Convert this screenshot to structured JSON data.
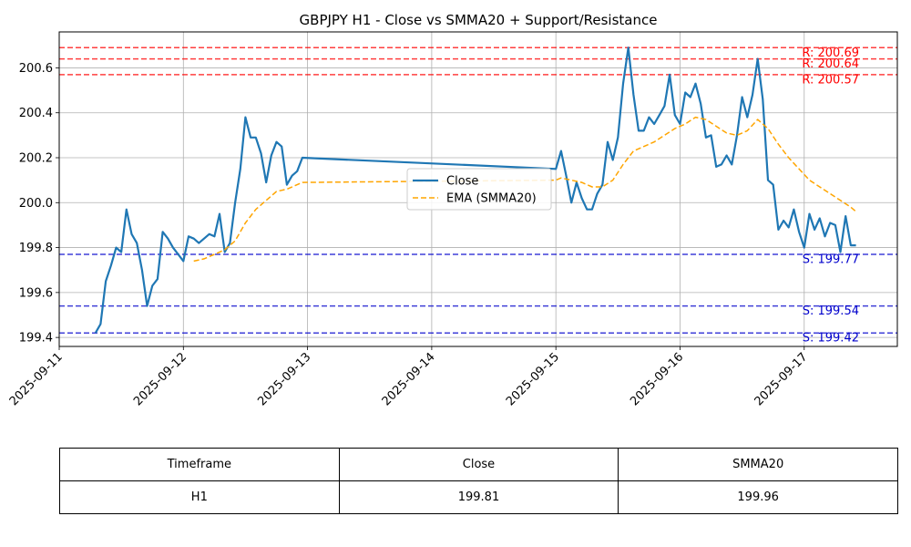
{
  "chart_data": {
    "type": "line",
    "title": "GBPJPY H1 - Close vs SMMA20 + Support/Resistance",
    "xlabel": "",
    "ylabel": "",
    "xlim": [
      "2025-09-11 00:00",
      "2025-09-17 18:00"
    ],
    "ylim": [
      199.36,
      200.76
    ],
    "x_ticks": [
      "2025-09-11",
      "2025-09-12",
      "2025-09-13",
      "2025-09-14",
      "2025-09-15",
      "2025-09-16",
      "2025-09-17"
    ],
    "y_ticks": [
      "199.4",
      "199.6",
      "199.8",
      "200.0",
      "200.2",
      "200.4",
      "200.6"
    ],
    "grid": true,
    "legend": {
      "position": "center",
      "entries": [
        "Close",
        "EMA (SMMA20)"
      ]
    },
    "series": [
      {
        "name": "Close",
        "color": "#1f77b4",
        "style": "solid",
        "points": [
          [
            "2025-09-11 07:00",
            199.42
          ],
          [
            "2025-09-11 08:00",
            199.46
          ],
          [
            "2025-09-11 09:00",
            199.65
          ],
          [
            "2025-09-11 10:00",
            199.72
          ],
          [
            "2025-09-11 11:00",
            199.8
          ],
          [
            "2025-09-11 12:00",
            199.78
          ],
          [
            "2025-09-11 13:00",
            199.97
          ],
          [
            "2025-09-11 14:00",
            199.86
          ],
          [
            "2025-09-11 15:00",
            199.82
          ],
          [
            "2025-09-11 16:00",
            199.7
          ],
          [
            "2025-09-11 17:00",
            199.54
          ],
          [
            "2025-09-11 18:00",
            199.63
          ],
          [
            "2025-09-11 19:00",
            199.66
          ],
          [
            "2025-09-11 20:00",
            199.87
          ],
          [
            "2025-09-11 21:00",
            199.84
          ],
          [
            "2025-09-11 22:00",
            199.8
          ],
          [
            "2025-09-11 23:00",
            199.77
          ],
          [
            "2025-09-12 00:00",
            199.74
          ],
          [
            "2025-09-12 01:00",
            199.85
          ],
          [
            "2025-09-12 02:00",
            199.84
          ],
          [
            "2025-09-12 03:00",
            199.82
          ],
          [
            "2025-09-12 04:00",
            199.84
          ],
          [
            "2025-09-12 05:00",
            199.86
          ],
          [
            "2025-09-12 06:00",
            199.85
          ],
          [
            "2025-09-12 07:00",
            199.95
          ],
          [
            "2025-09-12 08:00",
            199.78
          ],
          [
            "2025-09-12 09:00",
            199.82
          ],
          [
            "2025-09-12 10:00",
            200.0
          ],
          [
            "2025-09-12 11:00",
            200.15
          ],
          [
            "2025-09-12 12:00",
            200.38
          ],
          [
            "2025-09-12 13:00",
            200.29
          ],
          [
            "2025-09-12 14:00",
            200.29
          ],
          [
            "2025-09-12 15:00",
            200.22
          ],
          [
            "2025-09-12 16:00",
            200.09
          ],
          [
            "2025-09-12 17:00",
            200.21
          ],
          [
            "2025-09-12 18:00",
            200.27
          ],
          [
            "2025-09-12 19:00",
            200.25
          ],
          [
            "2025-09-12 20:00",
            200.08
          ],
          [
            "2025-09-12 21:00",
            200.12
          ],
          [
            "2025-09-12 22:00",
            200.14
          ],
          [
            "2025-09-12 23:00",
            200.2
          ],
          [
            "2025-09-15 00:00",
            200.15
          ],
          [
            "2025-09-15 01:00",
            200.23
          ],
          [
            "2025-09-15 02:00",
            200.12
          ],
          [
            "2025-09-15 03:00",
            200.0
          ],
          [
            "2025-09-15 04:00",
            200.09
          ],
          [
            "2025-09-15 05:00",
            200.02
          ],
          [
            "2025-09-15 06:00",
            199.97
          ],
          [
            "2025-09-15 07:00",
            199.97
          ],
          [
            "2025-09-15 08:00",
            200.04
          ],
          [
            "2025-09-15 09:00",
            200.08
          ],
          [
            "2025-09-15 10:00",
            200.27
          ],
          [
            "2025-09-15 11:00",
            200.19
          ],
          [
            "2025-09-15 12:00",
            200.29
          ],
          [
            "2025-09-15 13:00",
            200.53
          ],
          [
            "2025-09-15 14:00",
            200.69
          ],
          [
            "2025-09-15 15:00",
            200.48
          ],
          [
            "2025-09-15 16:00",
            200.32
          ],
          [
            "2025-09-15 17:00",
            200.32
          ],
          [
            "2025-09-15 18:00",
            200.38
          ],
          [
            "2025-09-15 19:00",
            200.35
          ],
          [
            "2025-09-15 20:00",
            200.39
          ],
          [
            "2025-09-15 21:00",
            200.43
          ],
          [
            "2025-09-15 22:00",
            200.57
          ],
          [
            "2025-09-15 23:00",
            200.39
          ],
          [
            "2025-09-16 00:00",
            200.35
          ],
          [
            "2025-09-16 01:00",
            200.49
          ],
          [
            "2025-09-16 02:00",
            200.47
          ],
          [
            "2025-09-16 03:00",
            200.53
          ],
          [
            "2025-09-16 04:00",
            200.44
          ],
          [
            "2025-09-16 05:00",
            200.29
          ],
          [
            "2025-09-16 06:00",
            200.3
          ],
          [
            "2025-09-16 07:00",
            200.16
          ],
          [
            "2025-09-16 08:00",
            200.17
          ],
          [
            "2025-09-16 09:00",
            200.21
          ],
          [
            "2025-09-16 10:00",
            200.17
          ],
          [
            "2025-09-16 11:00",
            200.3
          ],
          [
            "2025-09-16 12:00",
            200.47
          ],
          [
            "2025-09-16 13:00",
            200.38
          ],
          [
            "2025-09-16 14:00",
            200.48
          ],
          [
            "2025-09-16 15:00",
            200.64
          ],
          [
            "2025-09-16 16:00",
            200.46
          ],
          [
            "2025-09-16 17:00",
            200.1
          ],
          [
            "2025-09-16 18:00",
            200.08
          ],
          [
            "2025-09-16 19:00",
            199.88
          ],
          [
            "2025-09-16 20:00",
            199.92
          ],
          [
            "2025-09-16 21:00",
            199.89
          ],
          [
            "2025-09-16 22:00",
            199.97
          ],
          [
            "2025-09-16 23:00",
            199.87
          ],
          [
            "2025-09-17 00:00",
            199.8
          ],
          [
            "2025-09-17 01:00",
            199.95
          ],
          [
            "2025-09-17 02:00",
            199.88
          ],
          [
            "2025-09-17 03:00",
            199.93
          ],
          [
            "2025-09-17 04:00",
            199.85
          ],
          [
            "2025-09-17 05:00",
            199.91
          ],
          [
            "2025-09-17 06:00",
            199.9
          ],
          [
            "2025-09-17 07:00",
            199.78
          ],
          [
            "2025-09-17 08:00",
            199.94
          ],
          [
            "2025-09-17 09:00",
            199.81
          ],
          [
            "2025-09-17 10:00",
            199.81
          ]
        ]
      },
      {
        "name": "EMA (SMMA20)",
        "color": "#ffa500",
        "style": "dashed",
        "points": [
          [
            "2025-09-12 02:00",
            199.74
          ],
          [
            "2025-09-12 04:00",
            199.75
          ],
          [
            "2025-09-12 06:00",
            199.77
          ],
          [
            "2025-09-12 08:00",
            199.79
          ],
          [
            "2025-09-12 10:00",
            199.83
          ],
          [
            "2025-09-12 12:00",
            199.91
          ],
          [
            "2025-09-12 14:00",
            199.97
          ],
          [
            "2025-09-12 16:00",
            200.01
          ],
          [
            "2025-09-12 18:00",
            200.05
          ],
          [
            "2025-09-12 20:00",
            200.06
          ],
          [
            "2025-09-12 22:00",
            200.08
          ],
          [
            "2025-09-12 23:00",
            200.09
          ],
          [
            "2025-09-15 00:00",
            200.1
          ],
          [
            "2025-09-15 01:00",
            200.11
          ],
          [
            "2025-09-15 03:00",
            200.1
          ],
          [
            "2025-09-15 05:00",
            200.09
          ],
          [
            "2025-09-15 07:00",
            200.07
          ],
          [
            "2025-09-15 09:00",
            200.07
          ],
          [
            "2025-09-15 11:00",
            200.1
          ],
          [
            "2025-09-15 13:00",
            200.17
          ],
          [
            "2025-09-15 15:00",
            200.23
          ],
          [
            "2025-09-15 17:00",
            200.25
          ],
          [
            "2025-09-15 19:00",
            200.27
          ],
          [
            "2025-09-15 21:00",
            200.3
          ],
          [
            "2025-09-15 23:00",
            200.33
          ],
          [
            "2025-09-16 01:00",
            200.35
          ],
          [
            "2025-09-16 03:00",
            200.38
          ],
          [
            "2025-09-16 05:00",
            200.37
          ],
          [
            "2025-09-16 07:00",
            200.34
          ],
          [
            "2025-09-16 09:00",
            200.31
          ],
          [
            "2025-09-16 11:00",
            200.3
          ],
          [
            "2025-09-16 13:00",
            200.32
          ],
          [
            "2025-09-16 15:00",
            200.37
          ],
          [
            "2025-09-16 17:00",
            200.33
          ],
          [
            "2025-09-16 19:00",
            200.26
          ],
          [
            "2025-09-16 21:00",
            200.2
          ],
          [
            "2025-09-16 23:00",
            200.15
          ],
          [
            "2025-09-17 01:00",
            200.1
          ],
          [
            "2025-09-17 03:00",
            200.07
          ],
          [
            "2025-09-17 05:00",
            200.04
          ],
          [
            "2025-09-17 07:00",
            200.01
          ],
          [
            "2025-09-17 09:00",
            199.98
          ],
          [
            "2025-09-17 10:00",
            199.96
          ]
        ]
      }
    ],
    "resistance_levels": [
      {
        "label": "R: 200.69",
        "value": 200.69
      },
      {
        "label": "R: 200.64",
        "value": 200.64
      },
      {
        "label": "R: 200.57",
        "value": 200.57
      }
    ],
    "support_levels": [
      {
        "label": "S: 199.77",
        "value": 199.77
      },
      {
        "label": "S: 199.54",
        "value": 199.54
      },
      {
        "label": "S: 199.42",
        "value": 199.42
      }
    ],
    "level_colors": {
      "resistance": "#ff0000",
      "support": "#0000cc"
    }
  },
  "table": {
    "headers": [
      "Timeframe",
      "Close",
      "SMMA20"
    ],
    "rows": [
      [
        "H1",
        "199.81",
        "199.96"
      ]
    ]
  }
}
